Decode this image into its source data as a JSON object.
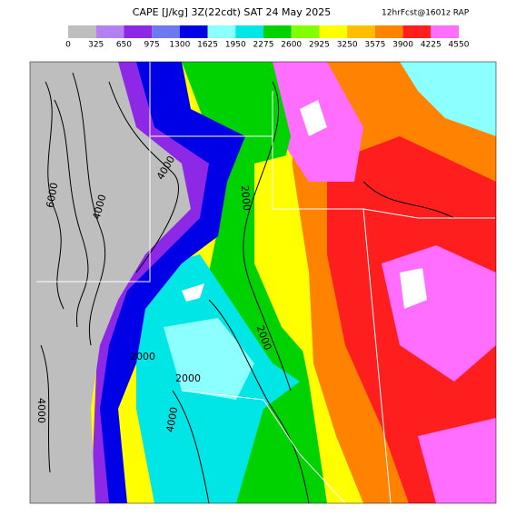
{
  "header": {
    "title": "CAPE [J/kg] 3Z(22cdt) SAT 24 May 2025",
    "subtitle": "12hrFcst@1601z RAP"
  },
  "colorbar": {
    "ticks": [
      0,
      325,
      650,
      975,
      1300,
      1625,
      1950,
      2275,
      2600,
      2925,
      3250,
      3575,
      3900,
      4225,
      4550
    ],
    "colors": [
      "#bebebe",
      "#b482f0",
      "#8c28e6",
      "#6e78f0",
      "#0000e6",
      "#8cffff",
      "#00e6e6",
      "#00d200",
      "#82ff00",
      "#ffff00",
      "#ffbe00",
      "#ff8200",
      "#ff1e1e",
      "#ff6eff"
    ]
  },
  "contour_labels": [
    "6000",
    "4000",
    "4000",
    "2000",
    "2000",
    "2000",
    "4000",
    "2000",
    "4000"
  ]
}
